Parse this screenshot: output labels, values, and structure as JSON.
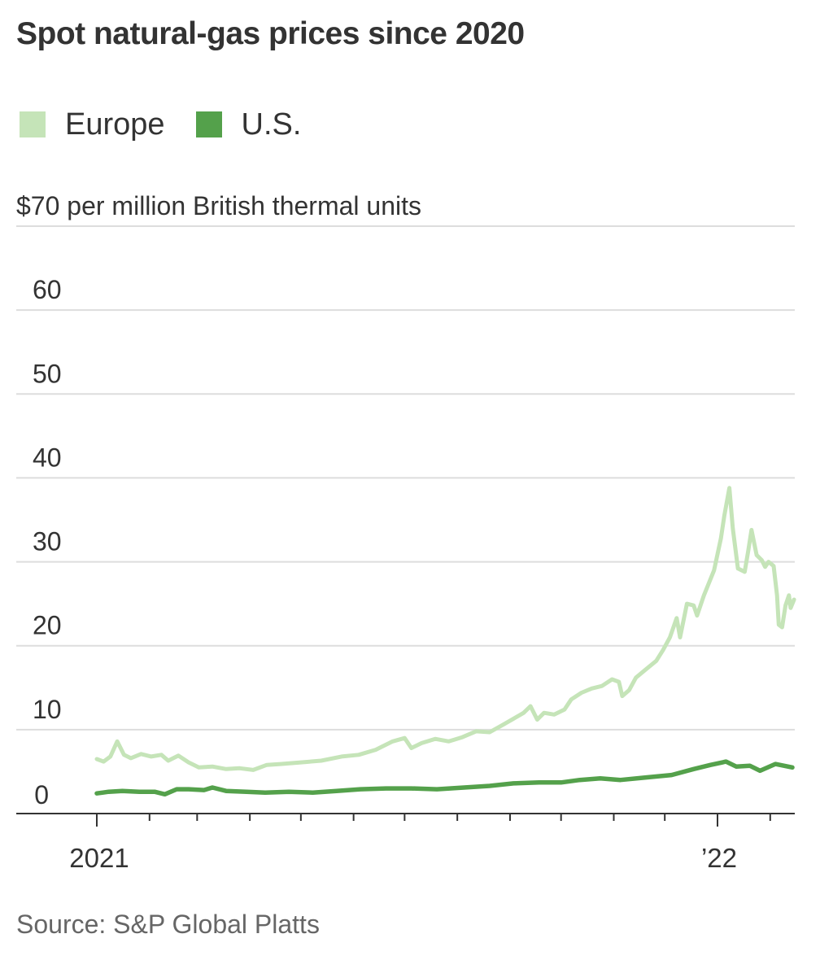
{
  "chart_data": {
    "type": "line",
    "title": "Spot natural-gas prices since 2020",
    "ylabel": "per million British thermal units",
    "ylim": [
      0,
      70
    ],
    "x_range": [
      "2020-12-01",
      "2022-02-15"
    ],
    "y_ticks": [
      {
        "value": 70,
        "label": "$70 per million British thermal units"
      },
      {
        "value": 60,
        "label": "60"
      },
      {
        "value": 50,
        "label": "50"
      },
      {
        "value": 40,
        "label": "40"
      },
      {
        "value": 30,
        "label": "30"
      },
      {
        "value": 20,
        "label": "20"
      },
      {
        "value": 10,
        "label": "10"
      },
      {
        "value": 0,
        "label": "0"
      }
    ],
    "x_ticks": [
      {
        "date": "2021-01-01",
        "label": "2021",
        "major": true
      },
      {
        "date": "2021-02-01",
        "label": "",
        "major": false
      },
      {
        "date": "2021-03-01",
        "label": "",
        "major": false
      },
      {
        "date": "2021-04-01",
        "label": "",
        "major": false
      },
      {
        "date": "2021-05-01",
        "label": "",
        "major": false
      },
      {
        "date": "2021-06-01",
        "label": "",
        "major": false
      },
      {
        "date": "2021-07-01",
        "label": "",
        "major": false
      },
      {
        "date": "2021-08-01",
        "label": "",
        "major": false
      },
      {
        "date": "2021-09-01",
        "label": "",
        "major": false
      },
      {
        "date": "2021-10-01",
        "label": "",
        "major": false
      },
      {
        "date": "2021-11-01",
        "label": "",
        "major": false
      },
      {
        "date": "2021-12-01",
        "label": "",
        "major": false
      },
      {
        "date": "2022-01-01",
        "label": "’22",
        "major": true
      },
      {
        "date": "2022-02-01",
        "label": "",
        "major": false
      }
    ],
    "grid": true,
    "legend_position": "top-left",
    "series": [
      {
        "name": "Europe",
        "color": "#c5e4b8",
        "points": [
          [
            "2021-01-01",
            6.5
          ],
          [
            "2021-01-05",
            6.2
          ],
          [
            "2021-01-09",
            6.8
          ],
          [
            "2021-01-13",
            8.6
          ],
          [
            "2021-01-17",
            7.0
          ],
          [
            "2021-01-21",
            6.6
          ],
          [
            "2021-01-27",
            7.1
          ],
          [
            "2021-02-02",
            6.8
          ],
          [
            "2021-02-08",
            7.0
          ],
          [
            "2021-02-12",
            6.3
          ],
          [
            "2021-02-18",
            6.9
          ],
          [
            "2021-02-24",
            6.1
          ],
          [
            "2021-03-02",
            5.5
          ],
          [
            "2021-03-10",
            5.6
          ],
          [
            "2021-03-18",
            5.3
          ],
          [
            "2021-03-26",
            5.4
          ],
          [
            "2021-04-03",
            5.2
          ],
          [
            "2021-04-11",
            5.8
          ],
          [
            "2021-04-19",
            5.9
          ],
          [
            "2021-05-01",
            6.1
          ],
          [
            "2021-05-13",
            6.3
          ],
          [
            "2021-05-25",
            6.8
          ],
          [
            "2021-06-04",
            7.0
          ],
          [
            "2021-06-14",
            7.6
          ],
          [
            "2021-06-24",
            8.6
          ],
          [
            "2021-07-01",
            9.0
          ],
          [
            "2021-07-05",
            7.8
          ],
          [
            "2021-07-11",
            8.4
          ],
          [
            "2021-07-19",
            8.9
          ],
          [
            "2021-07-27",
            8.6
          ],
          [
            "2021-08-04",
            9.1
          ],
          [
            "2021-08-12",
            9.8
          ],
          [
            "2021-08-20",
            9.7
          ],
          [
            "2021-08-28",
            10.6
          ],
          [
            "2021-09-03",
            11.3
          ],
          [
            "2021-09-09",
            12.0
          ],
          [
            "2021-09-13",
            12.8
          ],
          [
            "2021-09-17",
            11.2
          ],
          [
            "2021-09-21",
            12.0
          ],
          [
            "2021-09-27",
            11.8
          ],
          [
            "2021-10-03",
            12.4
          ],
          [
            "2021-10-07",
            13.6
          ],
          [
            "2021-10-13",
            14.4
          ],
          [
            "2021-10-19",
            14.9
          ],
          [
            "2021-10-25",
            15.2
          ],
          [
            "2021-10-31",
            16.0
          ],
          [
            "2021-11-04",
            15.7
          ],
          [
            "2021-11-06",
            14.0
          ],
          [
            "2021-11-10",
            14.7
          ],
          [
            "2021-11-14",
            16.2
          ],
          [
            "2021-11-20",
            17.2
          ],
          [
            "2021-11-26",
            18.2
          ],
          [
            "2021-11-30",
            19.5
          ],
          [
            "2021-12-04",
            21.0
          ],
          [
            "2021-12-08",
            23.3
          ],
          [
            "2021-12-10",
            21.0
          ],
          [
            "2021-12-14",
            25.0
          ],
          [
            "2021-12-18",
            24.8
          ],
          [
            "2021-12-20",
            23.6
          ],
          [
            "2021-12-24",
            26.0
          ],
          [
            "2021-12-30",
            29.0
          ],
          [
            "2022-01-03",
            32.8
          ],
          [
            "2022-01-05",
            35.5
          ],
          [
            "2022-01-08",
            38.8
          ],
          [
            "2022-01-10",
            34.0
          ],
          [
            "2022-01-13",
            29.2
          ],
          [
            "2022-01-17",
            28.8
          ],
          [
            "2022-01-19",
            31.2
          ],
          [
            "2022-01-21",
            33.8
          ],
          [
            "2022-01-24",
            30.8
          ],
          [
            "2022-01-27",
            30.2
          ],
          [
            "2022-01-29",
            29.4
          ],
          [
            "2022-01-31",
            30.0
          ],
          [
            "2022-02-03",
            29.5
          ],
          [
            "2022-02-05",
            26.0
          ],
          [
            "2022-02-06",
            22.5
          ],
          [
            "2022-02-08",
            22.2
          ],
          [
            "2022-02-10",
            24.8
          ],
          [
            "2022-02-12",
            26.0
          ],
          [
            "2022-02-13",
            24.5
          ],
          [
            "2022-02-15",
            25.5
          ]
        ]
      },
      {
        "name": "U.S.",
        "color": "#54a14b",
        "points": [
          [
            "2021-01-01",
            2.4
          ],
          [
            "2021-01-08",
            2.6
          ],
          [
            "2021-01-16",
            2.7
          ],
          [
            "2021-01-26",
            2.6
          ],
          [
            "2021-02-04",
            2.6
          ],
          [
            "2021-02-10",
            2.3
          ],
          [
            "2021-02-17",
            2.9
          ],
          [
            "2021-02-24",
            2.9
          ],
          [
            "2021-03-05",
            2.8
          ],
          [
            "2021-03-10",
            3.1
          ],
          [
            "2021-03-18",
            2.7
          ],
          [
            "2021-03-30",
            2.6
          ],
          [
            "2021-04-10",
            2.5
          ],
          [
            "2021-04-24",
            2.6
          ],
          [
            "2021-05-08",
            2.5
          ],
          [
            "2021-05-22",
            2.7
          ],
          [
            "2021-06-05",
            2.9
          ],
          [
            "2021-06-20",
            3.0
          ],
          [
            "2021-07-05",
            3.0
          ],
          [
            "2021-07-20",
            2.9
          ],
          [
            "2021-08-05",
            3.1
          ],
          [
            "2021-08-20",
            3.3
          ],
          [
            "2021-09-03",
            3.6
          ],
          [
            "2021-09-18",
            3.7
          ],
          [
            "2021-10-01",
            3.7
          ],
          [
            "2021-10-12",
            4.0
          ],
          [
            "2021-10-24",
            4.2
          ],
          [
            "2021-11-05",
            4.0
          ],
          [
            "2021-11-20",
            4.3
          ],
          [
            "2021-12-05",
            4.6
          ],
          [
            "2021-12-18",
            5.3
          ],
          [
            "2021-12-28",
            5.8
          ],
          [
            "2022-01-06",
            6.2
          ],
          [
            "2022-01-12",
            5.6
          ],
          [
            "2022-01-20",
            5.7
          ],
          [
            "2022-01-26",
            5.1
          ],
          [
            "2022-02-04",
            5.9
          ],
          [
            "2022-02-14",
            5.5
          ]
        ]
      }
    ]
  },
  "source": "Source: S&P Global Platts"
}
